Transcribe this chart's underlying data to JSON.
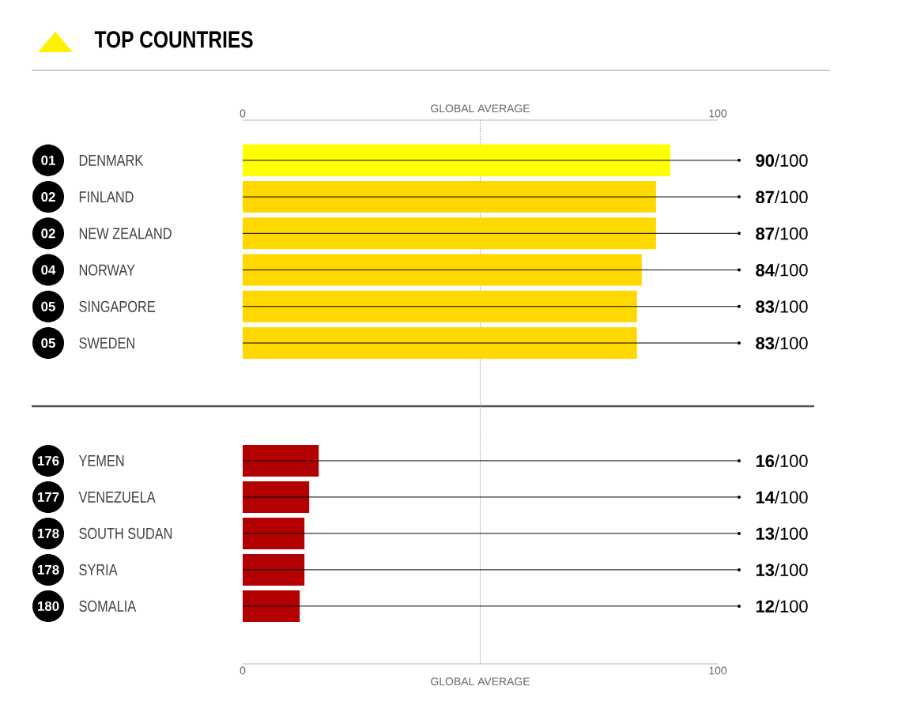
{
  "chart_data": [
    {
      "type": "bar",
      "orientation": "horizontal",
      "title": "TOP COUNTRIES",
      "categories": [
        "DENMARK",
        "FINLAND",
        "NEW ZEALAND",
        "NORWAY",
        "SINGAPORE",
        "SWEDEN"
      ],
      "values": [
        90,
        87,
        87,
        84,
        83,
        83
      ],
      "colors": [
        "#ffff00",
        "#ffd800",
        "#ffd800",
        "#ffd800",
        "#ffd800",
        "#ffd800"
      ],
      "value_labels": [
        "**90**/100",
        "**87**/100",
        "**87**/100",
        "**84**/100",
        "**83**/100",
        "**83**/100"
      ],
      "annotations": [
        "01",
        "02",
        "02",
        "04",
        "05",
        "05"
      ],
      "x2lim": [
        0,
        100
      ],
      "x2ticks": [
        0,
        100
      ],
      "ref_lines": [
        {
          "axis": "x",
          "value": 50,
          "label": "GLOBAL AVERAGE",
          "color": "#999999",
          "line_style": "dotted"
        }
      ]
    },
    {
      "type": "bar",
      "orientation": "horizontal",
      "categories": [
        "YEMEN",
        "VENEZUELA",
        "SOUTH SUDAN",
        "SYRIA",
        "SOMALIA"
      ],
      "values": [
        16,
        14,
        13,
        13,
        12
      ],
      "colors": [
        "#b30000",
        "#b30000",
        "#b30000",
        "#b30000",
        "#b30000"
      ],
      "value_labels": [
        "**16**/100",
        "**14**/100",
        "**13**/100",
        "**13**/100",
        "**12**/100"
      ],
      "annotations": [
        "176",
        "177",
        "178",
        "178",
        "180"
      ],
      "xlim": [
        0,
        100
      ],
      "xticks": [
        0,
        100
      ],
      "ref_lines": [
        {
          "axis": "x",
          "value": 50,
          "label": "GLOBAL AVERAGE",
          "color": "#999999",
          "line_style": "dotted"
        }
      ]
    }
  ]
}
